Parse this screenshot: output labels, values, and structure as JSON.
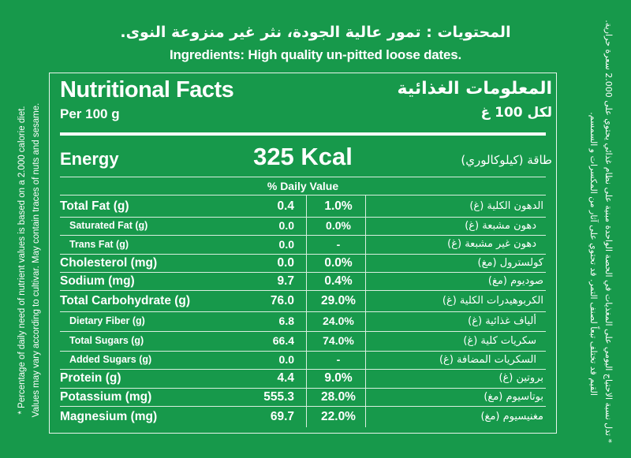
{
  "ingredients": {
    "arabic": "المحتويات : تمور عالية الجودة، نثر غير منزوعة النوى.",
    "english": "Ingredients: High quality un-pitted loose dates."
  },
  "panel": {
    "title_en": "Nutritional Facts",
    "per_en": "Per 100 g",
    "title_ar": "المعلومات الغذائية",
    "per_ar": "لكل 100 غ",
    "energy_label_en": "Energy",
    "energy_value": "325 Kcal",
    "energy_label_ar": "طاقة (كيلوكالوري)",
    "daily_value_header": "% Daily Value",
    "rows": [
      {
        "en": "Total Fat (g)",
        "value": "0.4",
        "dv": "1.0%",
        "ar": "الدهون الكلية (غ)"
      },
      {
        "en": "Saturated Fat (g)",
        "value": "0.0",
        "dv": "0.0%",
        "ar": "دهون مشبعة (غ)"
      },
      {
        "en": "Trans Fat (g)",
        "value": "0.0",
        "dv": "-",
        "ar": "دهون غير مشبعة (غ)"
      },
      {
        "en": "Cholesterol (mg)",
        "value": "0.0",
        "dv": "0.0%",
        "ar": "كولسترول (مغ)"
      },
      {
        "en": "Sodium (mg)",
        "value": "9.7",
        "dv": "0.4%",
        "ar": "صوديوم (مغ)"
      },
      {
        "en": "Total Carbohydrate (g)",
        "value": "76.0",
        "dv": "29.0%",
        "ar": "الكربوهيدرات الكلية (غ)"
      },
      {
        "en": "Dietary Fiber (g)",
        "value": "6.8",
        "dv": "24.0%",
        "ar": "ألياف غذائية (غ)"
      },
      {
        "en": "Total Sugars (g)",
        "value": "66.4",
        "dv": "74.0%",
        "ar": "سكريات كلية (غ)"
      },
      {
        "en": "Added Sugars (g)",
        "value": "0.0",
        "dv": "-",
        "ar": "السكريات المضافة (غ)"
      },
      {
        "en": "Protein (g)",
        "value": "4.4",
        "dv": "9.0%",
        "ar": "بروتين (غ)"
      },
      {
        "en": "Potassium (mg)",
        "value": "555.3",
        "dv": "28.0%",
        "ar": "بوتاسيوم (مغ)"
      },
      {
        "en": "Magnesium (mg)",
        "value": "69.7",
        "dv": "22.0%",
        "ar": "مغنيسيوم (مغ)"
      }
    ]
  },
  "footnote_en": {
    "line1": "* Percentage of daily need of nutrient values is based on a 2.000 calorie diet.",
    "line2": "Values may vary according to cultivar. May contain traces of nuts and sesame."
  },
  "footnote_ar": {
    "line1": "* تدل نسبة الاحتياج اليومي على المغذيات في الحصة الواحدة مبنية على نظام غذائي يحتوي على 2.000 سعرة حرارية.",
    "line2": "القيم قد تختلف تبعاً لصنف التمر. قد تحتوي على آثار من المكسرات و السمسم."
  },
  "colors": {
    "background": "#17994b",
    "text": "#ffffff"
  }
}
